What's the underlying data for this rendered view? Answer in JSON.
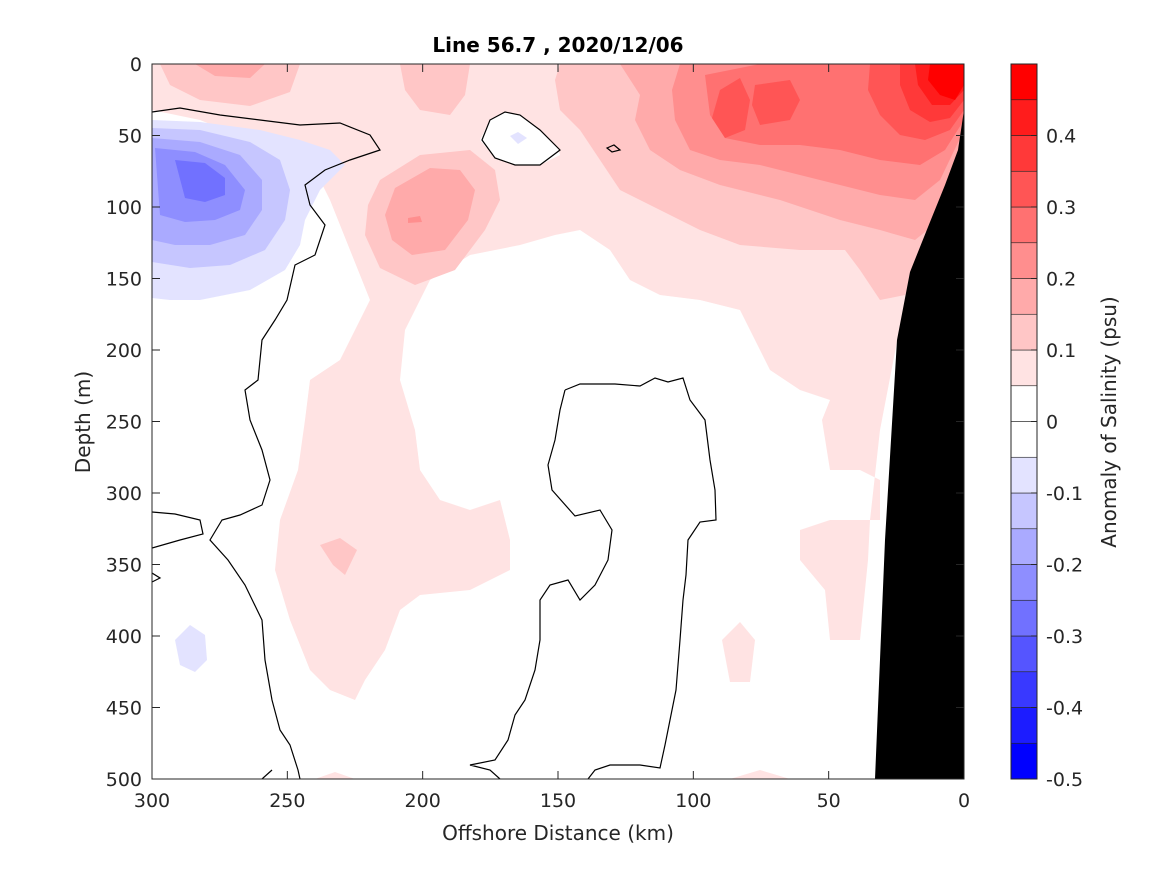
{
  "chart_data": {
    "type": "heatmap",
    "subtype": "filled-contour",
    "title": "Line 56.7 , 2020/12/06",
    "xlabel": "Offshore Distance (km)",
    "ylabel": "Depth (m)",
    "xlim": [
      300,
      0
    ],
    "ylim": [
      500,
      0
    ],
    "x_reversed": true,
    "y_reversed": true,
    "x_ticks": [
      300,
      250,
      200,
      150,
      100,
      50,
      0
    ],
    "y_ticks": [
      0,
      50,
      100,
      150,
      200,
      250,
      300,
      350,
      400,
      450,
      500
    ],
    "colorbar": {
      "label": "Anomaly of Salinity (psu)",
      "range": [
        -0.5,
        0.5
      ],
      "ticks": [
        0.4,
        0.3,
        0.2,
        0.1,
        0,
        -0.1,
        -0.2,
        -0.3,
        -0.4,
        -0.5
      ],
      "levels": [
        -0.5,
        -0.45,
        -0.4,
        -0.35,
        -0.3,
        -0.25,
        -0.2,
        -0.15,
        -0.1,
        -0.05,
        0,
        0.05,
        0.1,
        0.15,
        0.2,
        0.25,
        0.3,
        0.35,
        0.4,
        0.45,
        0.5
      ],
      "colors": [
        "#0000ff",
        "#1c1cff",
        "#3939ff",
        "#5555ff",
        "#7171ff",
        "#8e8eff",
        "#aaaaff",
        "#c6c6ff",
        "#e3e3ff",
        "#ffffff",
        "#ffffff",
        "#ffe3e3",
        "#ffc6c6",
        "#ffaaaa",
        "#ff8e8e",
        "#ff7171",
        "#ff5555",
        "#ff3939",
        "#ff1c1c",
        "#ff0000"
      ]
    },
    "features": [
      {
        "name": "strong positive anomaly near coast",
        "x": [
          0,
          30
        ],
        "depth": [
          0,
          40
        ],
        "value": 0.45
      },
      {
        "name": "positive anomaly band nearshore",
        "x": [
          0,
          100
        ],
        "depth": [
          0,
          150
        ],
        "value": 0.25
      },
      {
        "name": "negative anomaly offshore",
        "x": [
          255,
          300
        ],
        "depth": [
          40,
          160
        ],
        "value": -0.3
      },
      {
        "name": "positive lens",
        "x": [
          175,
          225
        ],
        "depth": [
          60,
          150
        ],
        "value": 0.2
      },
      {
        "name": "small negative patch",
        "x": [
          280,
          290
        ],
        "depth": [
          395,
          425
        ],
        "value": -0.1
      }
    ],
    "land_mask": {
      "color": "#000000",
      "description": "continental shelf/slope (bathymetry)"
    }
  }
}
